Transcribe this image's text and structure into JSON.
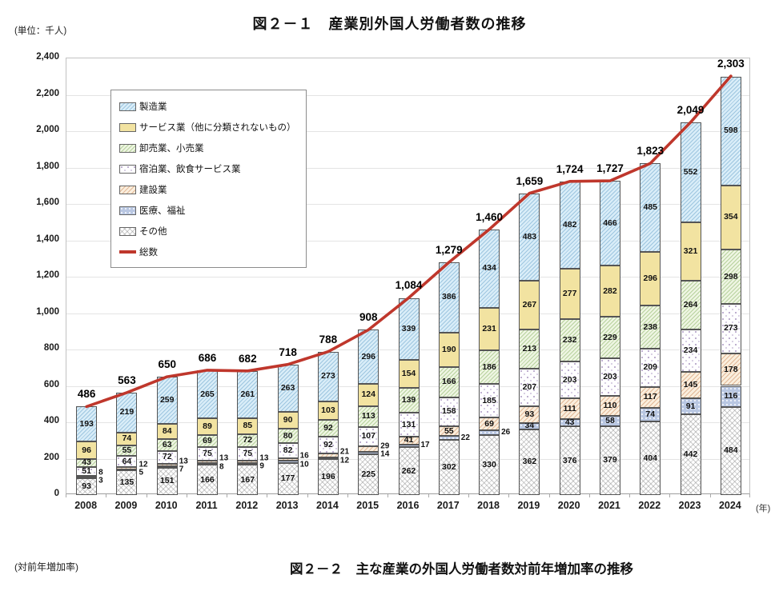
{
  "header": {
    "unit_label": "(単位：千人)",
    "title": "図２－１　産業別外国人労働者数の推移"
  },
  "footer": {
    "rate_label": "(対前年増加率)",
    "next_title": "図２－２　主な産業の外国人労働者数対前年増加率の推移"
  },
  "chart_data": {
    "type": "bar",
    "stacked": true,
    "title": "図２－１　産業別外国人労働者数の推移",
    "unit_label": "(単位：千人)",
    "categories": [
      "2008",
      "2009",
      "2010",
      "2011",
      "2012",
      "2013",
      "2014",
      "2015",
      "2016",
      "2017",
      "2018",
      "2019",
      "2020",
      "2021",
      "2022",
      "2023",
      "2024"
    ],
    "x_axis_suffix": "(年)",
    "ylim": [
      0,
      2400
    ],
    "ytick_step": 200,
    "y_ticks": [
      "0",
      "200",
      "400",
      "600",
      "800",
      "1,000",
      "1,200",
      "1,400",
      "1,600",
      "1,800",
      "2,000",
      "2,200",
      "2,400"
    ],
    "grid": true,
    "legend_position": "top-left-inside",
    "series": [
      {
        "name": "製造業",
        "key": "manufacturing",
        "color": "#d9edf8",
        "values": [
          193,
          219,
          259,
          265,
          261,
          263,
          273,
          296,
          339,
          386,
          434,
          483,
          482,
          466,
          485,
          552,
          598
        ]
      },
      {
        "name": "サービス業（他に分類されないもの）",
        "key": "services",
        "color": "#f2e3a1",
        "values": [
          96,
          74,
          84,
          89,
          85,
          90,
          103,
          124,
          154,
          190,
          231,
          267,
          277,
          282,
          296,
          321,
          354
        ]
      },
      {
        "name": "卸売業、小売業",
        "key": "wholesale",
        "color": "#eef5e2",
        "values": [
          43,
          55,
          63,
          69,
          72,
          80,
          92,
          113,
          139,
          166,
          186,
          213,
          232,
          229,
          238,
          264,
          298
        ]
      },
      {
        "name": "宿泊業、飲食サービス業",
        "key": "accommodation",
        "color": "#fefeff",
        "values": [
          51,
          64,
          72,
          75,
          75,
          82,
          92,
          107,
          131,
          158,
          185,
          207,
          203,
          203,
          209,
          234,
          273
        ]
      },
      {
        "name": "建設業",
        "key": "construction",
        "color": "#faeedd",
        "values": [
          8,
          12,
          13,
          13,
          13,
          16,
          21,
          29,
          41,
          55,
          69,
          93,
          111,
          110,
          117,
          145,
          178
        ]
      },
      {
        "name": "医療、福祉",
        "key": "medical",
        "color": "#b9c7e2",
        "values": [
          3,
          5,
          7,
          8,
          9,
          10,
          12,
          14,
          17,
          22,
          26,
          34,
          43,
          58,
          74,
          91,
          116
        ]
      },
      {
        "name": "その他",
        "key": "others",
        "color": "#ffffff",
        "values": [
          93,
          135,
          151,
          166,
          167,
          177,
          196,
          225,
          262,
          302,
          330,
          362,
          376,
          379,
          404,
          442,
          484
        ]
      }
    ],
    "total_series": {
      "name": "総数",
      "color": "#bf372c",
      "values": [
        486,
        563,
        650,
        686,
        682,
        718,
        788,
        908,
        1084,
        1279,
        1460,
        1659,
        1724,
        1727,
        1823,
        2049,
        2303
      ],
      "labels": [
        "486",
        "563",
        "650",
        "686",
        "682",
        "718",
        "788",
        "908",
        "1,084",
        "1,279",
        "1,460",
        "1,659",
        "1,724",
        "1,727",
        "1,823",
        "2,049",
        "2,303"
      ]
    }
  }
}
